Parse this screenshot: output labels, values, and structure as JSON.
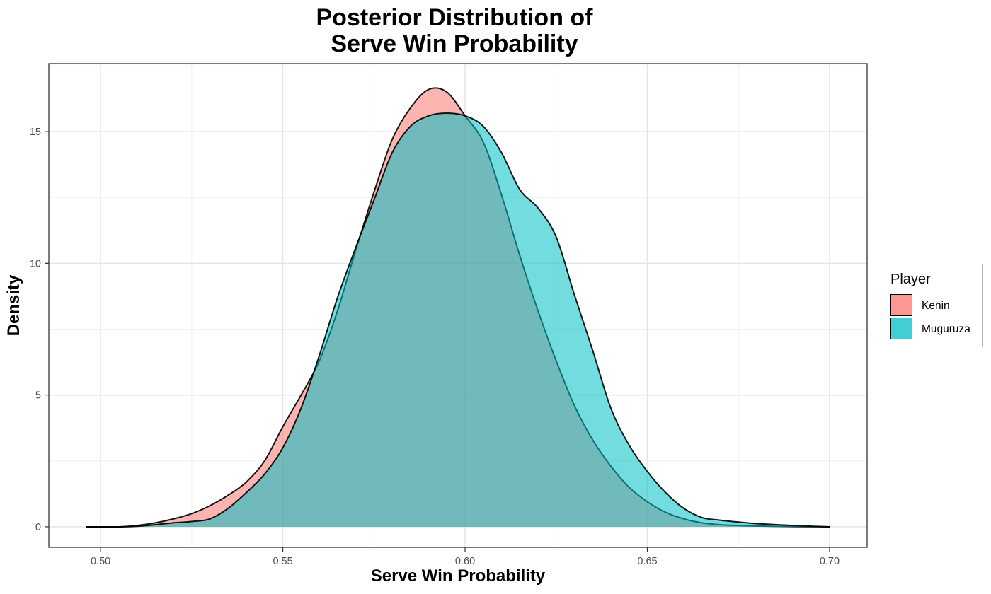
{
  "chart_data": {
    "type": "area",
    "title": [
      "Posterior Distribution of",
      "Serve Win Probability"
    ],
    "xlabel": "Serve Win Probability",
    "ylabel": "Density",
    "xlim": [
      0.4858,
      0.7103
    ],
    "ylim": [
      -0.78,
      17.58
    ],
    "x_ticks": [
      0.5,
      0.55,
      0.6,
      0.65,
      0.7
    ],
    "x_tick_labels": [
      "0.50",
      "0.55",
      "0.60",
      "0.65",
      "0.70"
    ],
    "y_ticks": [
      0,
      5,
      10,
      15
    ],
    "y_tick_labels": [
      "0",
      "5",
      "10",
      "15"
    ],
    "grid": true,
    "legend": {
      "title": "Player",
      "position": "right"
    },
    "series": [
      {
        "name": "Kenin",
        "color": "#F8766D",
        "x": [
          0.496,
          0.505,
          0.51,
          0.515,
          0.52,
          0.525,
          0.53,
          0.535,
          0.54,
          0.545,
          0.55,
          0.555,
          0.56,
          0.565,
          0.57,
          0.575,
          0.58,
          0.585,
          0.59,
          0.595,
          0.6,
          0.605,
          0.61,
          0.615,
          0.62,
          0.625,
          0.63,
          0.635,
          0.64,
          0.645,
          0.65,
          0.655,
          0.66,
          0.665,
          0.67,
          0.675,
          0.68,
          0.69,
          0.7
        ],
        "y": [
          0.0,
          0.0,
          0.05,
          0.15,
          0.3,
          0.5,
          0.8,
          1.2,
          1.7,
          2.5,
          3.8,
          5.0,
          6.3,
          8.2,
          10.5,
          12.7,
          14.7,
          15.9,
          16.6,
          16.5,
          15.6,
          14.6,
          12.6,
          10.3,
          8.2,
          6.3,
          4.6,
          3.3,
          2.3,
          1.5,
          0.95,
          0.55,
          0.3,
          0.15,
          0.08,
          0.05,
          0.03,
          0.01,
          0.0
        ]
      },
      {
        "name": "Muguruza",
        "color": "#00BFC4",
        "x": [
          0.496,
          0.505,
          0.51,
          0.515,
          0.52,
          0.525,
          0.53,
          0.535,
          0.54,
          0.545,
          0.55,
          0.555,
          0.56,
          0.565,
          0.57,
          0.575,
          0.58,
          0.585,
          0.59,
          0.595,
          0.6,
          0.605,
          0.61,
          0.615,
          0.62,
          0.625,
          0.63,
          0.635,
          0.64,
          0.645,
          0.65,
          0.655,
          0.66,
          0.665,
          0.67,
          0.675,
          0.68,
          0.69,
          0.7
        ],
        "y": [
          0.0,
          0.0,
          0.02,
          0.08,
          0.15,
          0.2,
          0.3,
          0.7,
          1.3,
          2.0,
          3.0,
          4.5,
          6.5,
          8.7,
          10.6,
          12.4,
          14.2,
          15.2,
          15.6,
          15.7,
          15.6,
          15.2,
          14.2,
          12.8,
          12.1,
          11.0,
          8.8,
          6.7,
          4.5,
          3.1,
          2.1,
          1.3,
          0.7,
          0.35,
          0.25,
          0.18,
          0.12,
          0.05,
          0.0
        ]
      }
    ]
  }
}
